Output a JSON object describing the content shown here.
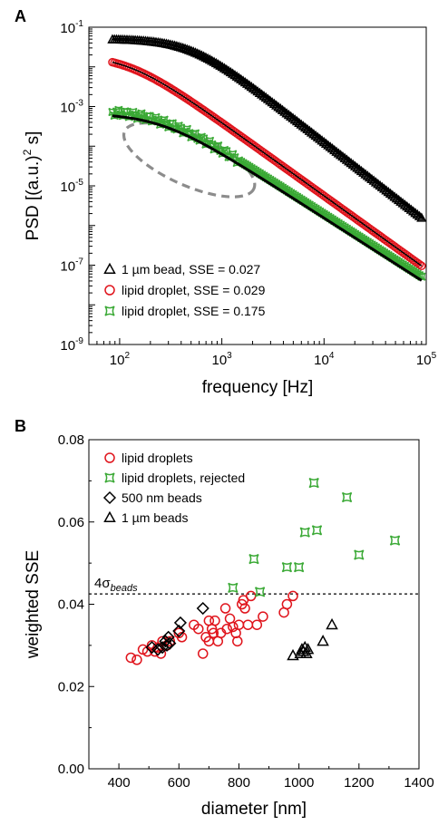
{
  "chart_data": [
    {
      "panel_label": "A",
      "type": "scatter",
      "xlabel": "frequency [Hz]",
      "ylabel_parts": [
        "PSD [(a.u.)",
        "2",
        " s]"
      ],
      "xscale": "log",
      "yscale": "log",
      "xlim": [
        50,
        100000
      ],
      "ylim": [
        1e-09,
        0.1
      ],
      "x_ticks": [
        {
          "b": "10",
          "e": "2",
          "v": 100
        },
        {
          "b": "10",
          "e": "3",
          "v": 1000
        },
        {
          "b": "10",
          "e": "4",
          "v": 10000
        },
        {
          "b": "10",
          "e": "5",
          "v": 100000
        }
      ],
      "y_ticks": [
        {
          "b": "10",
          "e": "-1",
          "v": 0.1
        },
        {
          "b": "10",
          "e": "-3",
          "v": 0.001
        },
        {
          "b": "10",
          "e": "-5",
          "v": 1e-05
        },
        {
          "b": "10",
          "e": "-7",
          "v": 1e-07
        },
        {
          "b": "10",
          "e": "-9",
          "v": 1e-09
        }
      ],
      "legend_position": "bottom-left",
      "series": [
        {
          "name": "1 µm bead, SSE = 0.027",
          "marker": "triangle",
          "color": "#000000",
          "x_range": [
            85,
            90000
          ],
          "psd_low": 0.05,
          "corner_hz": 500,
          "slope": 2
        },
        {
          "name": "lipid droplet, SSE = 0.029",
          "marker": "circle",
          "color": "#e0141c",
          "x_range": [
            85,
            90000
          ],
          "psd_low": 0.02,
          "corner_hz": 120,
          "slope": 1.85
        },
        {
          "name": "lipid droplet, SSE = 0.175",
          "marker": "star",
          "color": "#3aa935",
          "x_range": [
            85,
            90000
          ],
          "psd_low": 0.00085,
          "corner_hz": 250,
          "slope": 1.65
        }
      ],
      "fit_color": "#000000",
      "annotation": "dashed ellipse around low-frequency region of rejected trace",
      "annotation_color": "#8c8c8c"
    },
    {
      "panel_label": "B",
      "type": "scatter",
      "xlabel": "diameter [nm]",
      "ylabel": "weighted SSE",
      "xlim": [
        300,
        1400
      ],
      "ylim": [
        0,
        0.08
      ],
      "x_ticks": [
        400,
        600,
        800,
        1000,
        1200,
        1400
      ],
      "y_ticks": [
        "0.00",
        "0.02",
        "0.04",
        "0.06",
        "0.08"
      ],
      "reference_line": {
        "y": 0.0425,
        "label_main": "4σ",
        "label_sub": "beads",
        "style": "dotted"
      },
      "legend_position": "top-left",
      "series": [
        {
          "name": "lipid droplets",
          "marker": "circle",
          "color": "#e0141c",
          "points": [
            [
              440,
              0.027
            ],
            [
              460,
              0.0265
            ],
            [
              480,
              0.029
            ],
            [
              495,
              0.0285
            ],
            [
              510,
              0.03
            ],
            [
              520,
              0.0285
            ],
            [
              530,
              0.0295
            ],
            [
              540,
              0.028
            ],
            [
              545,
              0.031
            ],
            [
              560,
              0.03
            ],
            [
              570,
              0.031
            ],
            [
              600,
              0.033
            ],
            [
              610,
              0.032
            ],
            [
              650,
              0.035
            ],
            [
              665,
              0.034
            ],
            [
              680,
              0.028
            ],
            [
              690,
              0.032
            ],
            [
              700,
              0.031
            ],
            [
              700,
              0.036
            ],
            [
              710,
              0.034
            ],
            [
              715,
              0.033
            ],
            [
              720,
              0.036
            ],
            [
              730,
              0.031
            ],
            [
              740,
              0.033
            ],
            [
              755,
              0.039
            ],
            [
              760,
              0.034
            ],
            [
              770,
              0.0365
            ],
            [
              780,
              0.0345
            ],
            [
              790,
              0.033
            ],
            [
              795,
              0.031
            ],
            [
              800,
              0.035
            ],
            [
              810,
              0.04
            ],
            [
              815,
              0.041
            ],
            [
              820,
              0.039
            ],
            [
              840,
              0.042
            ],
            [
              830,
              0.035
            ],
            [
              860,
              0.035
            ],
            [
              880,
              0.037
            ],
            [
              950,
              0.038
            ],
            [
              960,
              0.04
            ],
            [
              980,
              0.042
            ]
          ]
        },
        {
          "name": "lipid droplets, rejected",
          "marker": "star",
          "color": "#3aa935",
          "points": [
            [
              780,
              0.044
            ],
            [
              850,
              0.051
            ],
            [
              870,
              0.043
            ],
            [
              960,
              0.049
            ],
            [
              1000,
              0.049
            ],
            [
              1020,
              0.0575
            ],
            [
              1050,
              0.0695
            ],
            [
              1060,
              0.058
            ],
            [
              1160,
              0.066
            ],
            [
              1200,
              0.052
            ],
            [
              1320,
              0.0555
            ]
          ]
        },
        {
          "name": "500 nm beads",
          "marker": "diamond",
          "color": "#000000",
          "points": [
            [
              510,
              0.0295
            ],
            [
              530,
              0.029
            ],
            [
              545,
              0.0295
            ],
            [
              555,
              0.031
            ],
            [
              560,
              0.03
            ],
            [
              565,
              0.032
            ],
            [
              570,
              0.0305
            ],
            [
              600,
              0.0335
            ],
            [
              605,
              0.0355
            ],
            [
              680,
              0.039
            ]
          ]
        },
        {
          "name": "1 µm beads",
          "marker": "triangle",
          "color": "#000000",
          "points": [
            [
              980,
              0.0275
            ],
            [
              1005,
              0.028
            ],
            [
              1010,
              0.029
            ],
            [
              1015,
              0.0285
            ],
            [
              1020,
              0.0295
            ],
            [
              1025,
              0.028
            ],
            [
              1030,
              0.029
            ],
            [
              1080,
              0.031
            ],
            [
              1110,
              0.035
            ]
          ]
        }
      ]
    }
  ]
}
